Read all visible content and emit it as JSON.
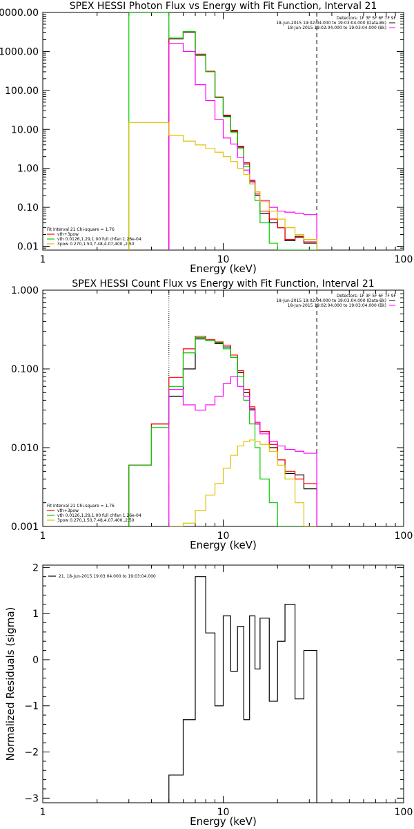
{
  "chart_data": [
    {
      "type": "line",
      "step": true,
      "title": "SPEX HESSI Photon Flux vs Energy with Fit Function, Interval 21",
      "xlabel": "Energy (keV)",
      "ylabel": "",
      "xscale": "log",
      "yscale": "log",
      "xlim": [
        1,
        100
      ],
      "ylim": [
        0.008,
        10000
      ],
      "xtick_labels": [
        "1",
        "10",
        "100"
      ],
      "ytick_labels": [
        "0.01",
        "0.10",
        "1.00",
        "10.00",
        "100.00",
        "1000.00",
        "10000.00"
      ],
      "ytick_values": [
        0.01,
        0.1,
        1,
        10,
        100,
        1000,
        10000
      ],
      "header_text": [
        "Detectors: 1F 3F 5F 6F 7F 9F",
        "18-Jun-2015 19:02:04.000 to 19:03:04.000 (Data-Bk)",
        "18-Jun-2015 19:02:04.000 to 19:03:04.000 (Bk)"
      ],
      "legend_title": "Fit Interval 21   Chi-square = 1.76",
      "legend_entries": [
        "vth+3pow",
        "vth 0.0126,1.29,1.00  full chfan 1.26e-04",
        "3pow 0.270,1.50,7.48,4.07,400.,2.50"
      ],
      "vlines": [
        {
          "x": 5,
          "style": "dotted"
        },
        {
          "x": 33,
          "style": "dashed"
        }
      ],
      "edges": [
        3,
        4,
        5,
        6,
        7,
        8,
        9,
        10,
        11,
        12,
        13,
        14,
        15,
        16,
        18,
        20,
        22,
        25,
        28,
        33
      ],
      "series": [
        {
          "color": "#000000",
          "values": [
            null,
            null,
            2100,
            3100,
            800,
            300,
            65,
            22,
            9,
            3.5,
            1.3,
            0.45,
            0.2,
            0.07,
            0.04,
            0.03,
            0.014,
            0.018,
            0.012
          ]
        },
        {
          "color": "#ff0000",
          "values": [
            null,
            null,
            2150,
            3200,
            850,
            310,
            68,
            23,
            9.5,
            3.7,
            1.4,
            0.48,
            0.22,
            0.08,
            0.05,
            0.03,
            0.015,
            0.017,
            0.013
          ]
        },
        {
          "color": "#00cc00",
          "values": [
            10000,
            10000,
            2200,
            3250,
            820,
            300,
            65,
            21,
            8.5,
            3.2,
            1.1,
            0.4,
            0.15,
            0.04,
            0.012,
            0.006,
            0.006,
            0.006,
            0.006
          ]
        },
        {
          "color": "#ff00ff",
          "values": [
            null,
            null,
            1600,
            1000,
            140,
            55,
            18,
            6,
            4.2,
            1.9,
            0.9,
            0.5,
            0.25,
            0.15,
            0.1,
            0.08,
            0.075,
            0.07,
            0.065
          ]
        },
        {
          "color": "#e0c000",
          "values": [
            15,
            15,
            7,
            5,
            4,
            3.2,
            2.6,
            2,
            1.5,
            1,
            0.7,
            0.4,
            0.25,
            0.14,
            0.08,
            0.05,
            0.03,
            0.02,
            0.015
          ]
        }
      ]
    },
    {
      "type": "line",
      "step": true,
      "title": "SPEX HESSI Count Flux vs Energy with Fit Function, Interval 21",
      "xlabel": "Energy (keV)",
      "ylabel": "",
      "xscale": "log",
      "yscale": "log",
      "xlim": [
        1,
        100
      ],
      "ylim": [
        0.001,
        1
      ],
      "xtick_labels": [
        "1",
        "10",
        "100"
      ],
      "ytick_labels": [
        "0.001",
        "0.010",
        "0.100",
        "1.000"
      ],
      "ytick_values": [
        0.001,
        0.01,
        0.1,
        1
      ],
      "header_text": [
        "Detectors: 1F 3F 5F 6F 7F 9F",
        "18-Jun-2015 19:02:04.000 to 19:03:04.000 (Data-Bk)",
        "18-Jun-2015 19:02:04.000 to 19:03:04.000 (Bk)"
      ],
      "legend_title": "Fit Interval 21   Chi-square = 1.76",
      "legend_entries": [
        "vth+3pow",
        "vth 0.0126,1.29,1.00  full chfan 1.26e-04",
        "3pow 0.270,1.50,7.48,4.07,400.,2.50"
      ],
      "vlines": [
        {
          "x": 5,
          "style": "dotted"
        },
        {
          "x": 33,
          "style": "dashed"
        }
      ],
      "edges": [
        3,
        4,
        5,
        6,
        7,
        8,
        9,
        10,
        11,
        12,
        13,
        14,
        15,
        16,
        18,
        20,
        22,
        25,
        28,
        33
      ],
      "series": [
        {
          "color": "#000000",
          "values": [
            0.006,
            0.02,
            0.045,
            0.1,
            0.24,
            0.23,
            0.21,
            0.19,
            0.14,
            0.09,
            0.05,
            0.031,
            0.02,
            0.016,
            0.01,
            0.007,
            0.0047,
            0.0045,
            0.003
          ]
        },
        {
          "color": "#ff0000",
          "values": [
            0.006,
            0.02,
            0.078,
            0.18,
            0.26,
            0.235,
            0.22,
            0.2,
            0.15,
            0.095,
            0.055,
            0.033,
            0.02,
            0.016,
            0.011,
            0.007,
            0.005,
            0.004,
            0.0035
          ]
        },
        {
          "color": "#00cc00",
          "values": [
            0.006,
            0.018,
            0.06,
            0.16,
            0.25,
            0.23,
            0.215,
            0.18,
            0.14,
            0.08,
            0.04,
            0.02,
            0.01,
            0.004,
            0.002,
            0.001,
            0.0008,
            0.0008,
            0.0008
          ]
        },
        {
          "color": "#ff00ff",
          "values": [
            null,
            null,
            0.055,
            0.035,
            0.03,
            0.035,
            0.045,
            0.065,
            0.08,
            0.06,
            0.045,
            0.03,
            0.021,
            0.015,
            0.012,
            0.0105,
            0.0095,
            0.009,
            0.0085
          ]
        },
        {
          "color": "#e0c000",
          "values": [
            null,
            null,
            0.001,
            0.0011,
            0.0016,
            0.0025,
            0.0035,
            0.0055,
            0.008,
            0.0105,
            0.012,
            0.0125,
            0.012,
            0.011,
            0.009,
            0.006,
            0.004,
            0.002,
            0.001
          ]
        }
      ]
    },
    {
      "type": "line",
      "step": true,
      "title": "",
      "xlabel": "Energy (keV)",
      "ylabel": "Normalized Residuals (sigma)",
      "xscale": "log",
      "yscale": "linear",
      "xlim": [
        1,
        100
      ],
      "ylim": [
        -3.1,
        2.05
      ],
      "xtick_labels": [
        "1",
        "10",
        "100"
      ],
      "ytick_labels": [
        "−3",
        "−2",
        "−1",
        "0",
        "1",
        "2"
      ],
      "ytick_values": [
        -3,
        -2,
        -1,
        0,
        1,
        2
      ],
      "legend_entries": [
        "21. 18-Jun-2015 19:03:04.000 to 19:03:04.000"
      ],
      "edges": [
        5,
        6,
        7,
        8,
        9,
        10,
        11,
        12,
        13,
        14,
        15,
        16,
        18,
        20,
        22,
        25,
        28,
        33
      ],
      "series": [
        {
          "color": "#000000",
          "values": [
            -2.5,
            -1.3,
            1.8,
            0.58,
            -1.0,
            0.95,
            -0.25,
            0.72,
            -1.3,
            0.95,
            -0.2,
            0.9,
            -0.9,
            0.4,
            1.2,
            -0.85,
            0.2
          ]
        }
      ],
      "baseline": -3.1
    }
  ]
}
